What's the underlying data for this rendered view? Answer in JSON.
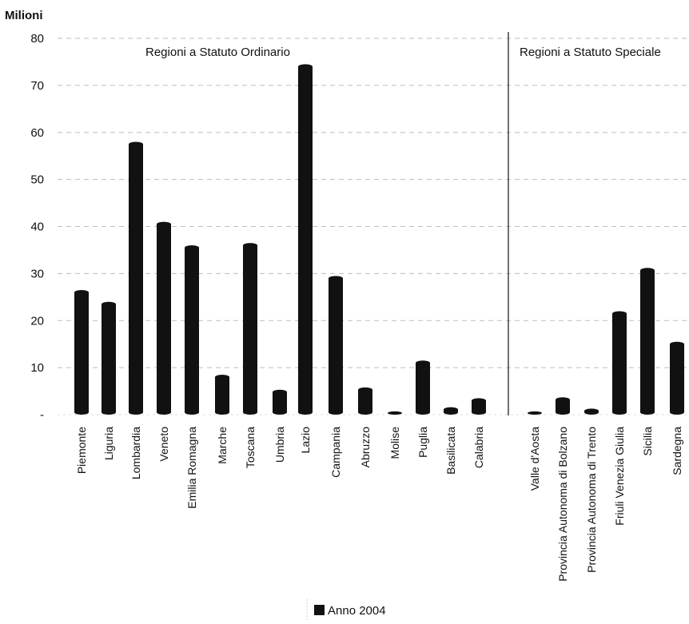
{
  "chart_data": {
    "type": "bar",
    "ylabel": "Milioni",
    "ylim": [
      0,
      80
    ],
    "yticks": [
      {
        "value": 0,
        "label": "-"
      },
      {
        "value": 10,
        "label": "10"
      },
      {
        "value": 20,
        "label": "20"
      },
      {
        "value": 30,
        "label": "30"
      },
      {
        "value": 40,
        "label": "40"
      },
      {
        "value": 50,
        "label": "50"
      },
      {
        "value": 60,
        "label": "60"
      },
      {
        "value": 70,
        "label": "70"
      },
      {
        "value": 80,
        "label": "80"
      }
    ],
    "grid": true,
    "groups": [
      {
        "label": "Regioni a Statuto Ordinario",
        "categories": [
          "Piemonte",
          "Liguria",
          "Lombardia",
          "Veneto",
          "Emilia Romagna",
          "Marche",
          "Toscana",
          "Umbria",
          "Lazio",
          "Campania",
          "Abruzzo",
          "Molise",
          "Puglia",
          "Basilicata",
          "Calabria"
        ]
      },
      {
        "label": "Regioni a Statuto Speciale",
        "categories": [
          "Valle d'Aosta",
          "Provincia Autonoma di Bolzano",
          "Provincia Autonoma di Trento",
          "Friuli Venezia Giulia",
          "Sicilia",
          "Sardegna"
        ]
      }
    ],
    "categories": [
      "Piemonte",
      "Liguria",
      "Lombardia",
      "Veneto",
      "Emilia Romagna",
      "Marche",
      "Toscana",
      "Umbria",
      "Lazio",
      "Campania",
      "Abruzzo",
      "Molise",
      "Puglia",
      "Basilicata",
      "Calabria",
      "Valle d'Aosta",
      "Provincia Autonoma di Bolzano",
      "Provincia Autonoma di Trento",
      "Friuli Venezia Giulia",
      "Sicilia",
      "Sardegna"
    ],
    "series": [
      {
        "name": "Anno 2004",
        "color": "#111111",
        "values": [
          26.5,
          24,
          58,
          41,
          36,
          8.5,
          36.5,
          5.3,
          74.5,
          29.5,
          5.8,
          0.7,
          11.5,
          1.6,
          3.5,
          0.7,
          3.7,
          1.3,
          22,
          31.2,
          15.5
        ]
      }
    ],
    "legend": {
      "position": "bottom",
      "entries": [
        "Anno 2004"
      ]
    }
  }
}
